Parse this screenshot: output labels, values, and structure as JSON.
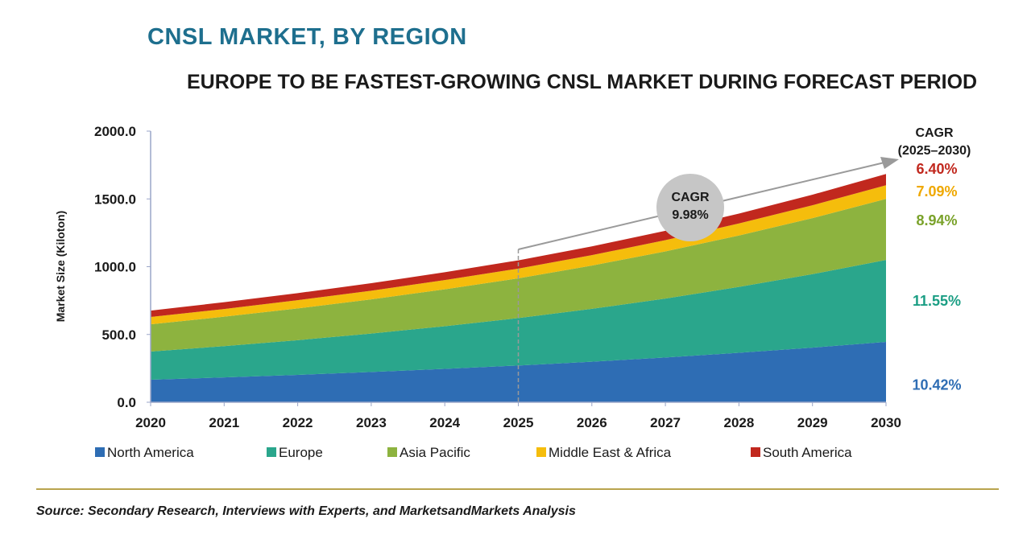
{
  "title": "CNSL MARKET, BY REGION",
  "subtitle": "EUROPE TO BE FASTEST-GROWING CNSL MARKET DURING FORECAST PERIOD",
  "source": "Source: Secondary Research, Interviews with Experts, and MarketsandMarkets Analysis",
  "chart_data": {
    "type": "area",
    "stacked": true,
    "ylabel": "Market Size (Kiloton)",
    "xlabel": "",
    "ylim": [
      0,
      2000
    ],
    "yticks": [
      "0.0",
      "500.0",
      "1000.0",
      "1500.0",
      "2000.0"
    ],
    "x": [
      "2020",
      "2021",
      "2022",
      "2023",
      "2024",
      "2025",
      "2026",
      "2027",
      "2028",
      "2029",
      "2030"
    ],
    "grid": false,
    "legend_position": "bottom",
    "series": [
      {
        "name": "North America",
        "color": "#2e6db4",
        "cagr": "10.42%",
        "cagr_color": "#2e6db4",
        "values": [
          166,
          183,
          202,
          223,
          246,
          271,
          299,
          330,
          365,
          403,
          445
        ]
      },
      {
        "name": "Europe",
        "color": "#2aa68c",
        "cagr": "11.55%",
        "cagr_color": "#1b9e84",
        "values": [
          208,
          231,
          256,
          284,
          315,
          350,
          390,
          435,
          486,
          542,
          605
        ]
      },
      {
        "name": "Asia Pacific",
        "color": "#8db33f",
        "cagr": "8.94%",
        "cagr_color": "#7aa22a",
        "values": [
          201,
          217,
          234,
          252,
          272,
          293,
          319,
          348,
          379,
          413,
          450
        ]
      },
      {
        "name": "Middle East & Africa",
        "color": "#f5bd0c",
        "cagr": "7.09%",
        "cagr_color": "#efa800",
        "values": [
          54,
          57,
          61,
          64,
          68,
          72,
          77,
          83,
          89,
          95,
          101
        ]
      },
      {
        "name": "South America",
        "color": "#c1281e",
        "cagr": "6.40%",
        "cagr_color": "#c1281e",
        "values": [
          47,
          50,
          52,
          55,
          58,
          61,
          65,
          69,
          73,
          78,
          83
        ]
      }
    ],
    "annotations": {
      "cagr_header": [
        "CAGR",
        "(2025–2030)"
      ],
      "total_cagr_label": "CAGR",
      "total_cagr_value": "9.98%",
      "forecast_start": "2025"
    }
  }
}
